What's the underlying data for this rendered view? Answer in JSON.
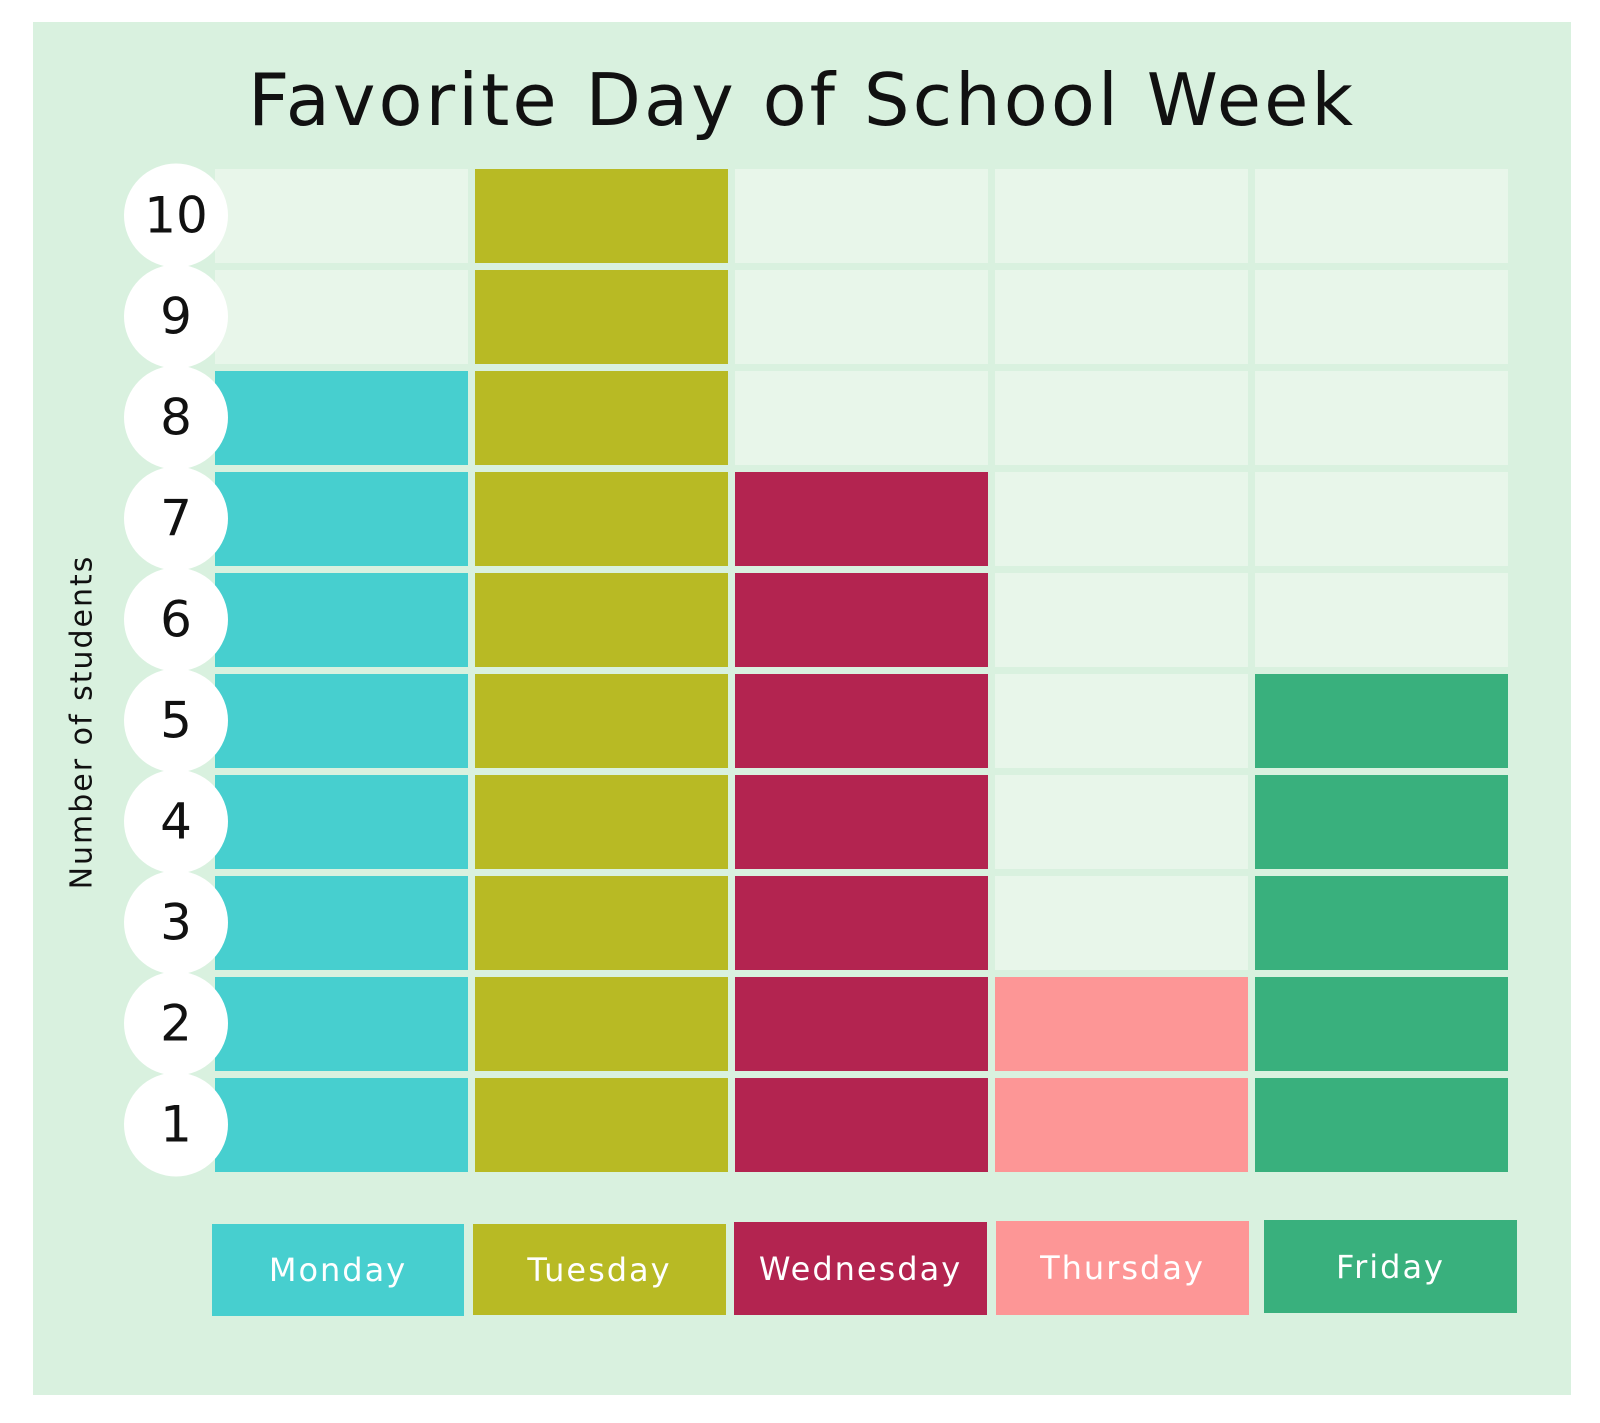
{
  "chart_data": {
    "type": "bar",
    "title": "Favorite Day of School Week",
    "xlabel": "",
    "ylabel": "Number of students",
    "categories": [
      "Monday",
      "Tuesday",
      "Wednesday",
      "Thursday",
      "Friday"
    ],
    "values": [
      8,
      10,
      7,
      2,
      5
    ],
    "colors": [
      "#47cfcf",
      "#b8ba24",
      "#b32450",
      "#fd9696",
      "#39b07d"
    ],
    "empty_cell_color": "#e8f6ea",
    "background_color": "#d9f1df",
    "y_ticks": [
      "1",
      "2",
      "3",
      "4",
      "5",
      "6",
      "7",
      "8",
      "9",
      "10"
    ],
    "ylim": [
      0,
      10
    ],
    "legend_position": "bottom",
    "grid": true
  }
}
